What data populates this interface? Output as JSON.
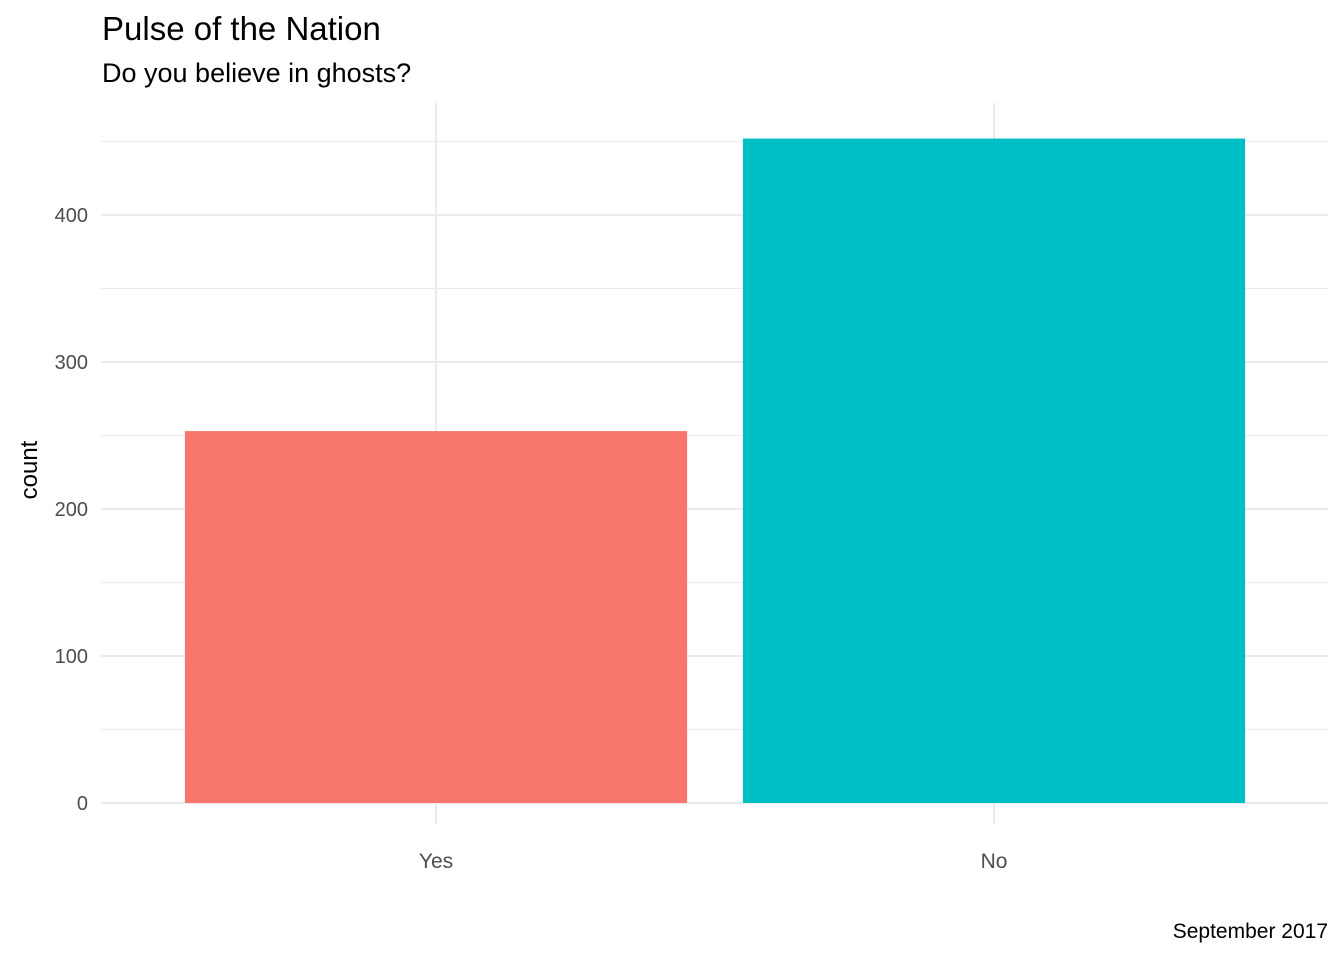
{
  "chart_data": {
    "type": "bar",
    "title": "Pulse of the Nation",
    "subtitle": "Do you believe in ghosts?",
    "caption": "September 2017",
    "xlabel": "",
    "ylabel": "count",
    "categories": [
      "Yes",
      "No"
    ],
    "values": [
      253,
      452
    ],
    "colors": [
      "#F8766D",
      "#00BFC4"
    ],
    "ylim": [
      0,
      475
    ],
    "y_ticks": [
      0,
      100,
      200,
      300,
      400
    ],
    "y_minor_ticks": [
      50,
      150,
      250,
      350,
      450
    ],
    "grid": true,
    "legend": "none"
  }
}
